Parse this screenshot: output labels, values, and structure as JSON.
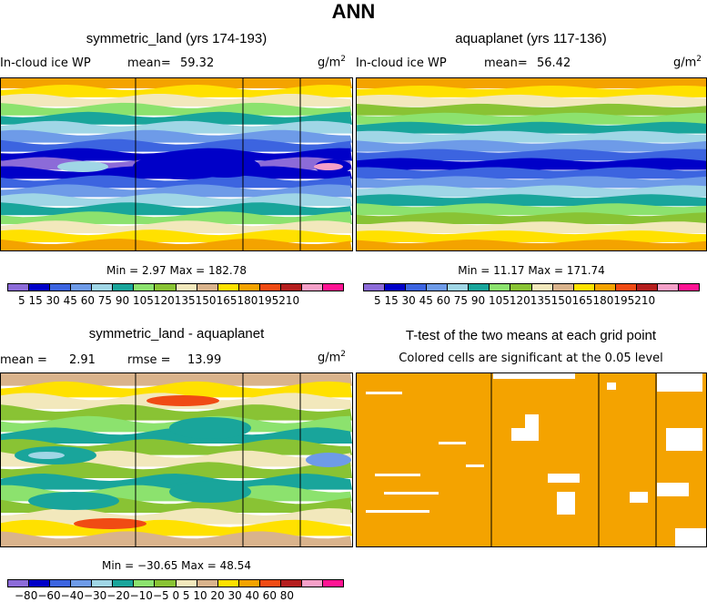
{
  "figure": {
    "title": "ANN",
    "units": "g/m",
    "units_sup": "2"
  },
  "panels": {
    "top_left": {
      "title": "symmetric_land (yrs 174-193)",
      "variable": "In-cloud ice WP",
      "mean_label": "mean=",
      "mean_value": "59.32",
      "minmax": "Min =    2.97  Max =  182.78"
    },
    "top_right": {
      "title": "aquaplanet (yrs 117-136)",
      "variable": "In-cloud ice WP",
      "mean_label": "mean=",
      "mean_value": "56.42",
      "minmax": "Min =    11.17  Max =  171.74"
    },
    "bottom_left": {
      "title": "symmetric_land - aquaplanet",
      "mean_label": "mean =",
      "mean_value": "2.91",
      "rmse_label": "rmse =",
      "rmse_value": "13.99",
      "minmax": "Min = −30.65  Max =  48.54"
    },
    "bottom_right": {
      "title": "T-test of the two means at each grid point",
      "subtitle": "Colored cells are significant at the 0.05 level"
    }
  },
  "chart_data": [
    {
      "type": "heatmap",
      "title": "symmetric_land (yrs 174-193)",
      "variable": "In-cloud ice WP",
      "units": "g/m2",
      "mean": 59.32,
      "min": 2.97,
      "max": 182.78,
      "colorbar_levels": [
        5,
        15,
        30,
        45,
        60,
        75,
        90,
        105,
        120,
        135,
        150,
        165,
        180,
        195,
        210
      ],
      "colorbar_label_text": "5  15  30  45  60  75  90 105120135150165180195210",
      "bands_top_to_bottom": [
        165,
        150,
        120,
        90,
        75,
        60,
        45,
        30,
        15,
        5,
        15,
        30,
        45,
        60,
        75,
        90,
        120,
        150,
        165
      ]
    },
    {
      "type": "heatmap",
      "title": "aquaplanet (yrs 117-136)",
      "variable": "In-cloud ice WP",
      "units": "g/m2",
      "mean": 56.42,
      "min": 11.17,
      "max": 171.74,
      "colorbar_levels": [
        5,
        15,
        30,
        45,
        60,
        75,
        90,
        105,
        120,
        135,
        150,
        165,
        180,
        195,
        210
      ],
      "colorbar_label_text": "5  15  30  45  60  75  90 105120135150165180195210",
      "bands_top_to_bottom": [
        165,
        150,
        120,
        105,
        90,
        75,
        60,
        45,
        30,
        15,
        30,
        45,
        60,
        75,
        90,
        105,
        120,
        150,
        165
      ]
    },
    {
      "type": "heatmap",
      "title": "symmetric_land - aquaplanet",
      "units": "g/m2",
      "mean": 2.91,
      "rmse": 13.99,
      "min": -30.65,
      "max": 48.54,
      "colorbar_levels": [
        -80,
        -60,
        -40,
        -30,
        -20,
        -10,
        -5,
        0,
        5,
        10,
        20,
        30,
        40,
        60,
        80
      ],
      "colorbar_label_text": "−80−60−40−30−20−10−5   0   5  10  20  30  40  60  80",
      "bands_top_to_bottom": [
        10,
        20,
        5,
        0,
        -5,
        -10,
        0,
        5,
        0,
        -10,
        -5,
        0,
        5,
        20,
        10
      ]
    },
    {
      "type": "heatmap",
      "title": "T-test of the two means at each grid point",
      "note": "Colored cells are significant at the 0.05 level",
      "significant_color": "#f4a300"
    }
  ],
  "colors": {
    "seq": [
      "#8c6bd8",
      "#0000c8",
      "#3c64e0",
      "#6e9be8",
      "#a0d6e6",
      "#19a59b",
      "#8ce26e",
      "#89c334",
      "#f2e8bc",
      "#d9b38c",
      "#ffe100",
      "#f4a300",
      "#f04b14",
      "#b41e1e",
      "#f5a0c8",
      "#ff1493"
    ],
    "div": [
      "#8c6bd8",
      "#0000c8",
      "#3c64e0",
      "#6e9be8",
      "#a0d6e6",
      "#19a59b",
      "#8ce26e",
      "#89c334",
      "#f2e8bc",
      "#d9b38c",
      "#ffe100",
      "#f4a300",
      "#f04b14",
      "#b41e1e",
      "#f5a0c8",
      "#ff1493"
    ]
  }
}
